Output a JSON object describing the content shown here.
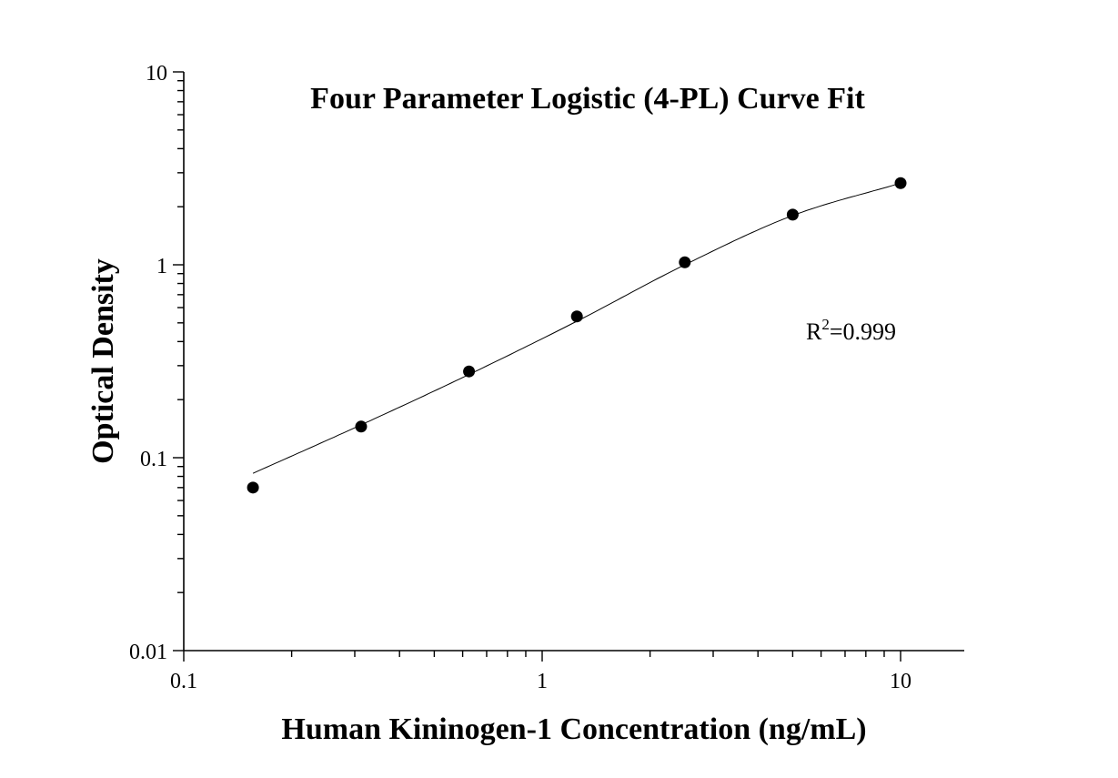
{
  "chart_data": {
    "type": "scatter",
    "title": "Four Parameter Logistic (4-PL) Curve Fit",
    "xlabel": "Human Kininogen-1 Concentration (ng/mL)",
    "ylabel": "Optical Density",
    "xscale": "log",
    "yscale": "log",
    "xlim": [
      0.1,
      15
    ],
    "ylim": [
      0.01,
      10
    ],
    "xticks": [
      0.1,
      1,
      10
    ],
    "xtick_labels": [
      "0.1",
      "1",
      "10"
    ],
    "yticks": [
      0.01,
      0.1,
      1,
      10
    ],
    "ytick_labels": [
      "0.01",
      "0.1",
      "1",
      "10"
    ],
    "grid": false,
    "annotation": {
      "prefix": "R",
      "superscript": "2",
      "suffix": "=0.999"
    },
    "series": [
      {
        "x": [
          0.156,
          0.3125,
          0.625,
          1.25,
          2.5,
          5,
          10
        ],
        "y": [
          0.07,
          0.145,
          0.28,
          0.54,
          1.03,
          1.82,
          2.65
        ]
      }
    ],
    "fit": {
      "x": [
        0.156,
        0.3125,
        0.625,
        1.25,
        2.5,
        5,
        10
      ],
      "y": [
        0.083,
        0.148,
        0.27,
        0.51,
        1.0,
        1.8,
        2.65
      ]
    }
  }
}
